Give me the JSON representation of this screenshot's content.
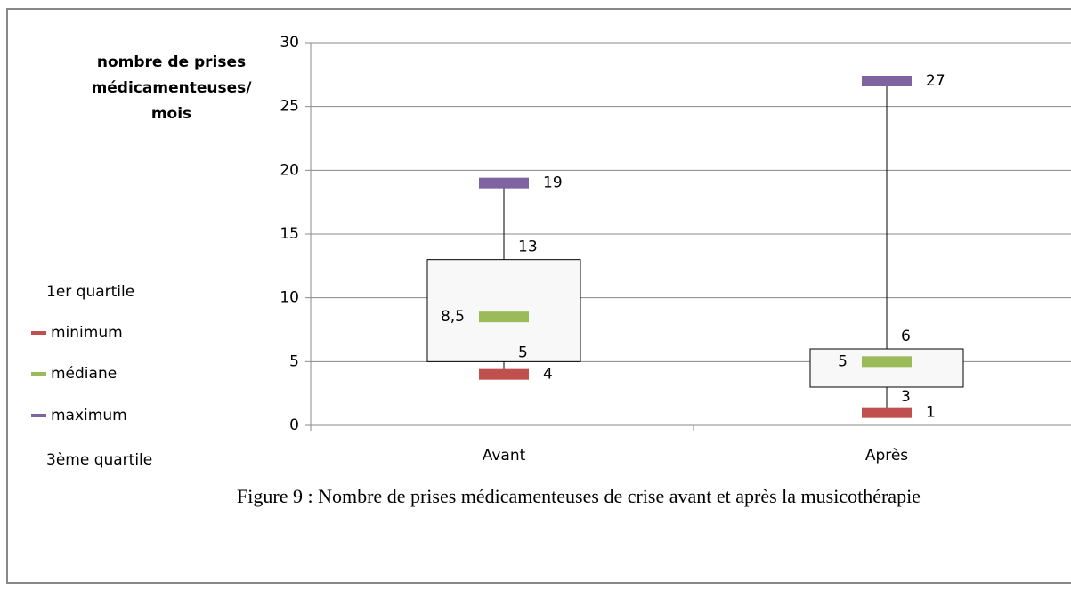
{
  "chart_data": {
    "type": "box",
    "y_label": "nombre de prises médicamenteuses/ mois",
    "caption": "Figure 9 : Nombre de prises médicamenteuses de crise avant et après la musicothérapie",
    "categories": [
      "Avant",
      "Après"
    ],
    "series": [
      {
        "name": "1er quartile",
        "values": [
          5,
          3
        ]
      },
      {
        "name": "minimum",
        "color": "#c0504d",
        "values": [
          4,
          1
        ]
      },
      {
        "name": "médiane",
        "color": "#9bbb59",
        "values": [
          8.5,
          5
        ],
        "value_labels": [
          "8,5",
          "5"
        ]
      },
      {
        "name": "maximum",
        "color": "#8064a2",
        "values": [
          19,
          27
        ]
      },
      {
        "name": "3ème quartile",
        "values": [
          13,
          6
        ]
      }
    ],
    "ylim": [
      0,
      30
    ],
    "yticks": [
      0,
      5,
      10,
      15,
      20,
      25,
      30
    ],
    "grid": true
  }
}
